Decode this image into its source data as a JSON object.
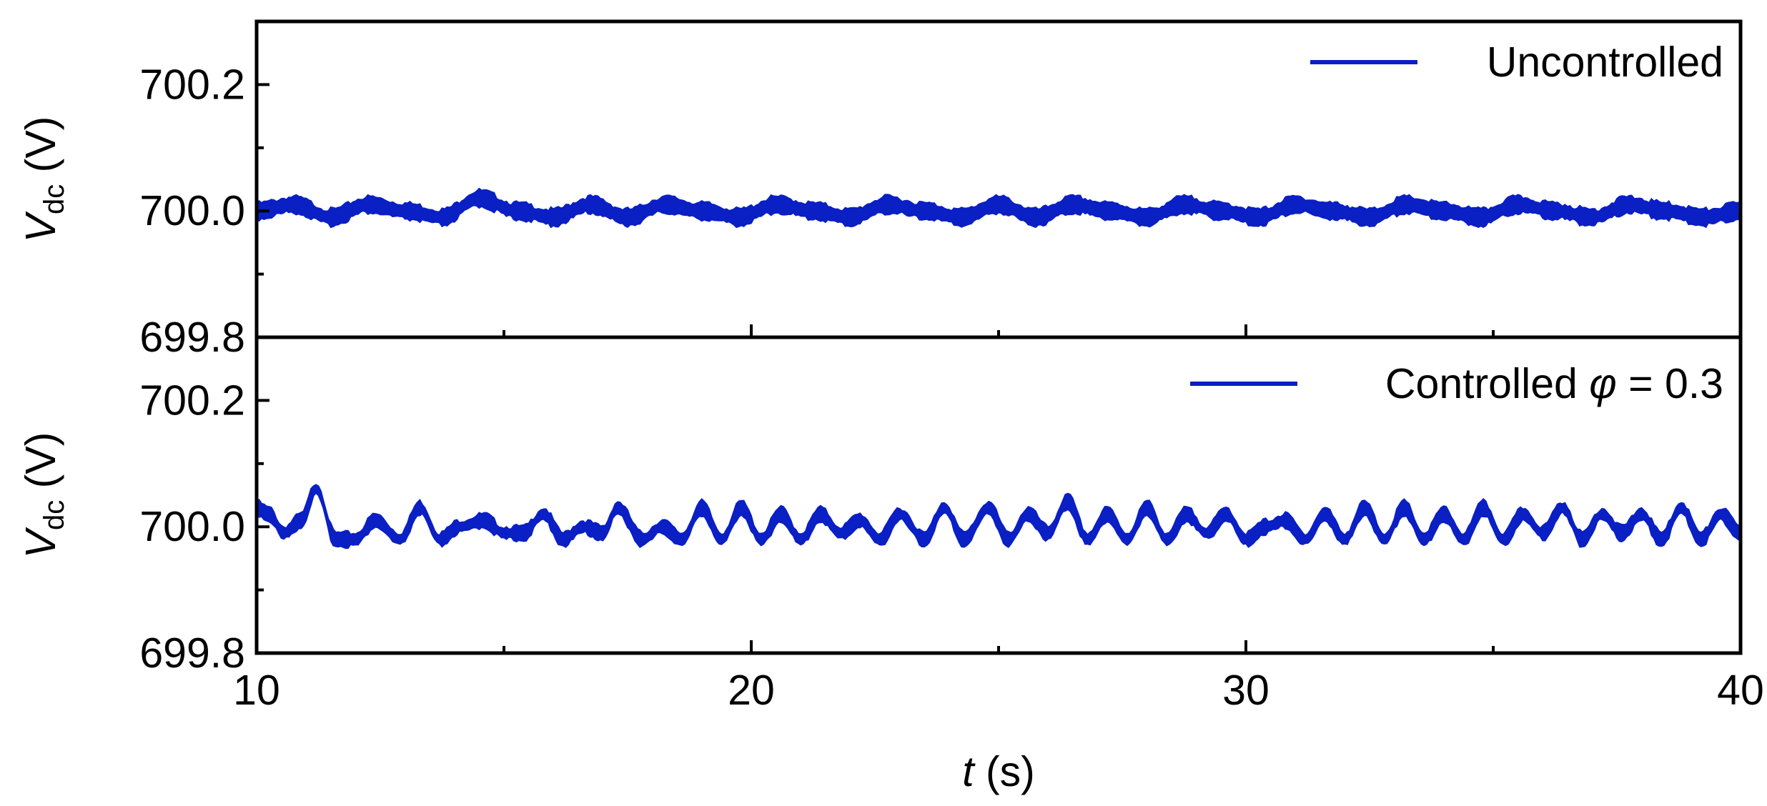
{
  "chart_data": [
    {
      "type": "line",
      "panel": "top",
      "ylabel": {
        "main": "V",
        "sub": "dc",
        "unit": " (V)"
      },
      "xlim": [
        10,
        40
      ],
      "ylim": [
        699.8,
        700.3
      ],
      "yticks": [
        699.8,
        700.0,
        700.2
      ],
      "ytick_labels": [
        "699.8",
        "700.0",
        "700.2"
      ],
      "legend": {
        "label": "Uncontrolled",
        "position": "top-right"
      },
      "grid": false,
      "color": "#0a1fc4",
      "series": [
        {
          "name": "Uncontrolled",
          "x": [
            10,
            10.75,
            11.5,
            12.25,
            13,
            13.75,
            14.5,
            15.25,
            16,
            16.75,
            17.5,
            18.25,
            19,
            19.75,
            20.5,
            21.25,
            22,
            22.75,
            23.5,
            24.25,
            25,
            25.75,
            26.5,
            27.25,
            28,
            28.75,
            29.5,
            30.25,
            31,
            31.75,
            32.5,
            33.25,
            34,
            34.75,
            35.5,
            36.25,
            37,
            37.75,
            38.5,
            39.25,
            40
          ],
          "y": [
            700.0,
            700.01,
            699.99,
            700.01,
            700.0,
            699.99,
            700.02,
            700.0,
            699.99,
            700.01,
            699.99,
            700.01,
            700.0,
            699.99,
            700.01,
            700.0,
            699.99,
            700.01,
            700.0,
            699.99,
            700.01,
            699.99,
            700.01,
            700.0,
            699.99,
            700.01,
            700.0,
            699.99,
            700.01,
            700.0,
            699.99,
            700.01,
            700.0,
            699.99,
            700.01,
            700.0,
            699.99,
            700.01,
            700.0,
            699.99,
            700.0
          ],
          "band_halfwidth": 0.012
        }
      ]
    },
    {
      "type": "line",
      "panel": "bottom",
      "ylabel": {
        "main": "V",
        "sub": "dc",
        "unit": " (V)"
      },
      "xlabel": {
        "main": "t",
        "unit": " (s)"
      },
      "xlim": [
        10,
        40
      ],
      "xticks": [
        10,
        20,
        30,
        40
      ],
      "xtick_labels": [
        "10",
        "20",
        "30",
        "40"
      ],
      "ylim": [
        699.8,
        700.3
      ],
      "yticks": [
        699.8,
        700.0,
        700.2
      ],
      "ytick_labels": [
        "699.8",
        "700.0",
        "700.2"
      ],
      "legend": {
        "label_prefix": "Controlled ",
        "label_symbol": "φ",
        "label_suffix": " = 0.3",
        "position": "top-right"
      },
      "grid": false,
      "color": "#0a1fc4",
      "series": [
        {
          "name": "Controlled φ = 0.3",
          "x": [
            10,
            10.25,
            10.55,
            10.9,
            11.2,
            11.6,
            12.0,
            12.4,
            12.9,
            13.3,
            13.7,
            14.1,
            14.6,
            15.0,
            15.4,
            15.8,
            16.2,
            16.6,
            17.0,
            17.3,
            17.8,
            18.2,
            18.6,
            19.0,
            19.4,
            19.8,
            20.2,
            20.6,
            21.0,
            21.4,
            21.8,
            22.2,
            22.6,
            23.0,
            23.5,
            23.9,
            24.3,
            24.8,
            25.2,
            25.6,
            26.0,
            26.4,
            26.8,
            27.2,
            27.6,
            28.0,
            28.4,
            28.8,
            29.2,
            29.6,
            30.0,
            30.4,
            30.8,
            31.2,
            31.6,
            32.0,
            32.4,
            32.8,
            33.2,
            33.6,
            34.0,
            34.4,
            34.8,
            35.2,
            35.6,
            36.0,
            36.4,
            36.8,
            37.2,
            37.6,
            38.0,
            38.4,
            38.8,
            39.2,
            39.6,
            40
          ],
          "y": [
            700.03,
            700.02,
            699.99,
            700.01,
            700.06,
            699.98,
            699.98,
            700.01,
            699.98,
            700.03,
            699.98,
            700.0,
            700.01,
            699.99,
            699.99,
            700.02,
            699.98,
            700.0,
            699.99,
            700.03,
            699.98,
            700.0,
            699.98,
            700.03,
            699.98,
            700.03,
            699.98,
            700.02,
            699.98,
            700.02,
            699.99,
            700.01,
            699.98,
            700.02,
            699.98,
            700.03,
            699.98,
            700.03,
            699.98,
            700.02,
            699.99,
            700.04,
            699.98,
            700.02,
            699.98,
            700.03,
            699.98,
            700.02,
            699.99,
            700.02,
            699.98,
            700.0,
            700.01,
            699.98,
            700.02,
            699.98,
            700.03,
            699.98,
            700.03,
            699.98,
            700.02,
            699.98,
            700.03,
            699.98,
            700.02,
            699.99,
            700.03,
            699.98,
            700.02,
            699.99,
            700.02,
            699.98,
            700.03,
            699.98,
            700.02,
            699.99
          ],
          "band_halfwidth": 0.01
        }
      ]
    }
  ]
}
